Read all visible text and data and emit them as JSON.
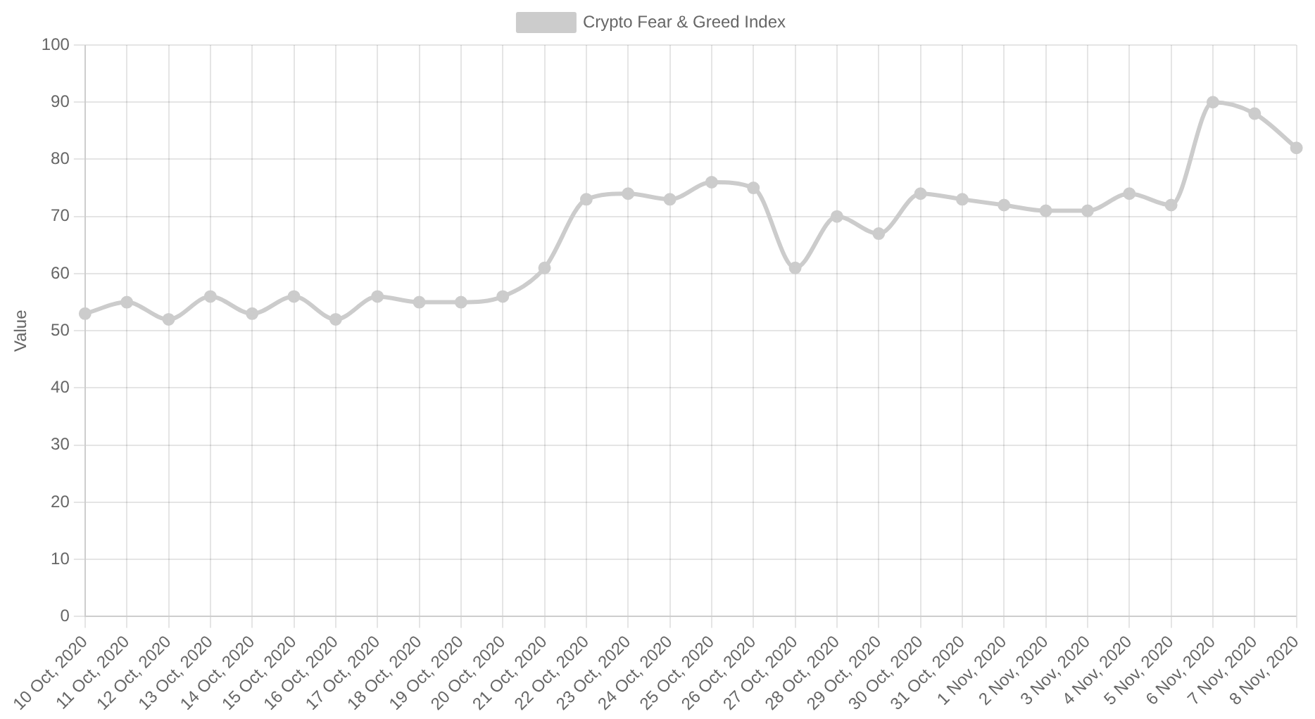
{
  "chart_data": {
    "type": "line",
    "ylabel": "Value",
    "categories": [
      "10 Oct, 2020",
      "11 Oct, 2020",
      "12 Oct, 2020",
      "13 Oct, 2020",
      "14 Oct, 2020",
      "15 Oct, 2020",
      "16 Oct, 2020",
      "17 Oct, 2020",
      "18 Oct, 2020",
      "19 Oct, 2020",
      "20 Oct, 2020",
      "21 Oct, 2020",
      "22 Oct, 2020",
      "23 Oct, 2020",
      "24 Oct, 2020",
      "25 Oct, 2020",
      "26 Oct, 2020",
      "27 Oct, 2020",
      "28 Oct, 2020",
      "29 Oct, 2020",
      "30 Oct, 2020",
      "31 Oct, 2020",
      "1 Nov, 2020",
      "2 Nov, 2020",
      "3 Nov, 2020",
      "4 Nov, 2020",
      "5 Nov, 2020",
      "6 Nov, 2020",
      "7 Nov, 2020",
      "8 Nov, 2020"
    ],
    "series": [
      {
        "name": "Crypto Fear & Greed Index",
        "color": "#cccccc",
        "values": [
          53,
          55,
          52,
          56,
          53,
          56,
          52,
          56,
          55,
          55,
          56,
          61,
          73,
          74,
          73,
          76,
          75,
          61,
          70,
          67,
          74,
          73,
          72,
          71,
          71,
          74,
          72,
          90,
          88,
          82
        ]
      }
    ],
    "ylim": [
      0,
      100
    ],
    "yticks": [
      0,
      10,
      20,
      30,
      40,
      50,
      60,
      70,
      80,
      90,
      100
    ],
    "grid": true,
    "legend": "top",
    "marker": "circle",
    "line_style": "solid"
  }
}
